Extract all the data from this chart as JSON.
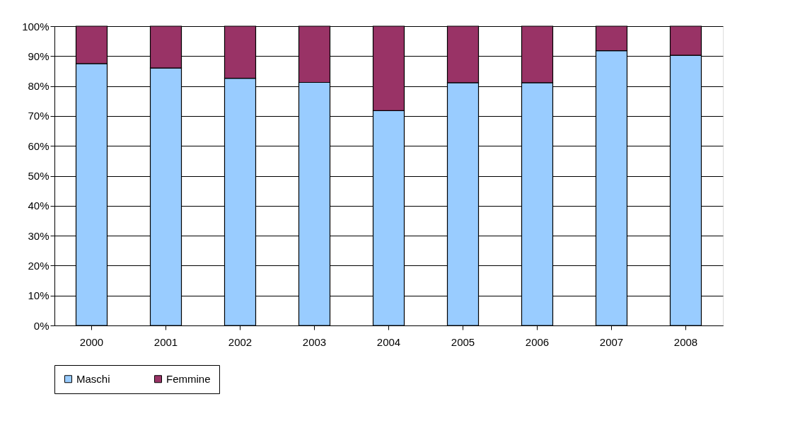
{
  "chart_data": {
    "type": "bar",
    "stacked": true,
    "categories": [
      "2000",
      "2001",
      "2002",
      "2003",
      "2004",
      "2005",
      "2006",
      "2007",
      "2008"
    ],
    "series": [
      {
        "name": "Maschi",
        "color": "#99ccff",
        "values": [
          87.5,
          86.0,
          82.6,
          81.2,
          71.8,
          81.1,
          81.1,
          91.8,
          90.3
        ]
      },
      {
        "name": "Femmine",
        "color": "#993366",
        "values": [
          12.5,
          14.0,
          17.4,
          18.8,
          28.2,
          18.9,
          18.9,
          8.2,
          9.7
        ]
      }
    ],
    "ylim": [
      0,
      100
    ],
    "yticks": [
      {
        "value": 0,
        "label": "0%"
      },
      {
        "value": 10,
        "label": "10%"
      },
      {
        "value": 20,
        "label": "20%"
      },
      {
        "value": 30,
        "label": "30%"
      },
      {
        "value": 40,
        "label": "40%"
      },
      {
        "value": 50,
        "label": "50%"
      },
      {
        "value": 60,
        "label": "60%"
      },
      {
        "value": 70,
        "label": "70%"
      },
      {
        "value": 80,
        "label": "80%"
      },
      {
        "value": 90,
        "label": "90%"
      },
      {
        "value": 100,
        "label": "100%"
      }
    ],
    "grid": "y",
    "legend": "bottom"
  }
}
